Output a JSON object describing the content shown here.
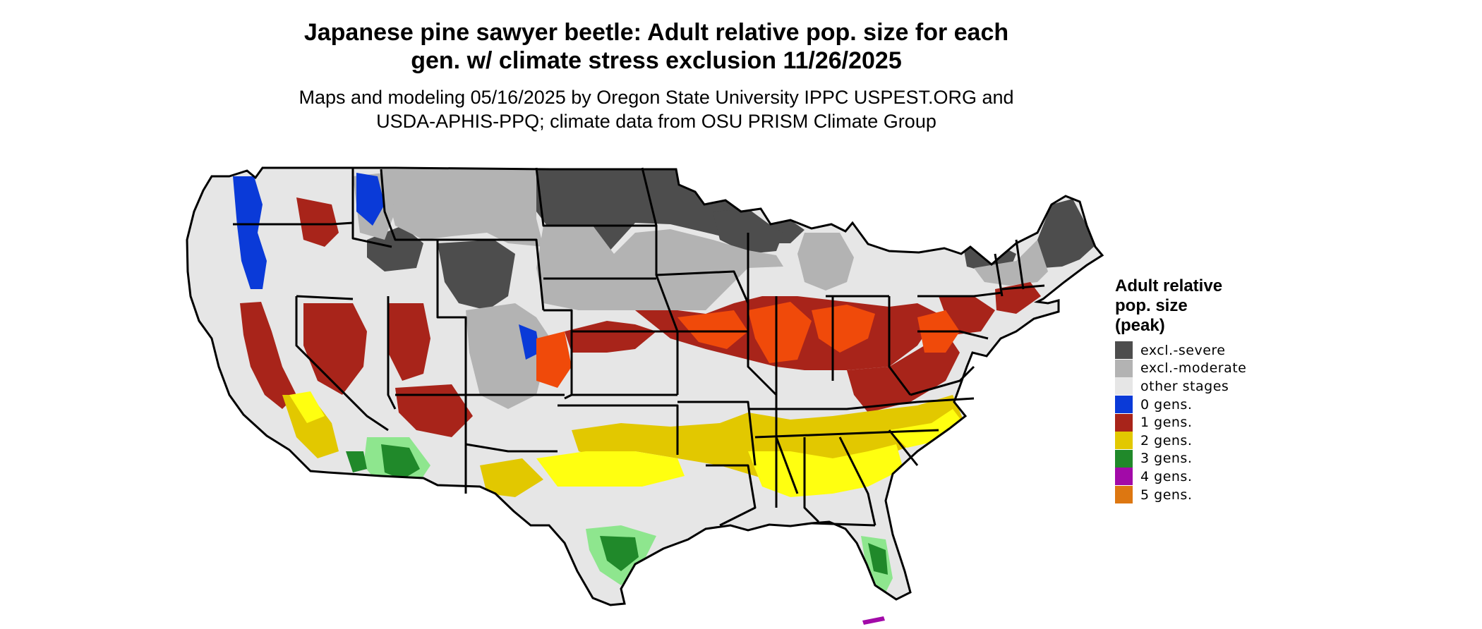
{
  "title": {
    "line1": "Japanese pine sawyer beetle: Adult relative pop. size for each",
    "line2": "gen. w/ climate stress exclusion 11/26/2025"
  },
  "subtitle": {
    "line1": "Maps and modeling 05/16/2025 by Oregon State University IPPC USPEST.ORG and",
    "line2": "USDA-APHIS-PPQ; climate data from OSU PRISM Climate Group"
  },
  "legend": {
    "title_lines": [
      "Adult relative",
      "pop. size",
      "(peak)"
    ],
    "items": [
      {
        "label": "excl.-severe",
        "color": "#4d4d4d"
      },
      {
        "label": "excl.-moderate",
        "color": "#b3b3b3"
      },
      {
        "label": "other stages",
        "color": "#e6e6e6"
      },
      {
        "label": "0 gens.",
        "color": "#0a3ad8"
      },
      {
        "label": "1 gens.",
        "color": "#a8241a"
      },
      {
        "label": "2 gens.",
        "color": "#e2c800"
      },
      {
        "label": "3 gens.",
        "color": "#20892a"
      },
      {
        "label": "4 gens.",
        "color": "#a20aa8"
      },
      {
        "label": "5 gens.",
        "color": "#dd7711"
      }
    ]
  },
  "map": {
    "colors": {
      "excl_severe": "#4d4d4d",
      "excl_moderate": "#b3b3b3",
      "other_stages": "#e6e6e6",
      "gen0": "#0a3ad8",
      "gen1": "#a8241a",
      "gen1_bright": "#f04a0a",
      "gen2": "#e2c800",
      "gen2_bright": "#ffff10",
      "gen3": "#20892a",
      "gen3_light": "#8ee68e",
      "gen4": "#a20aa8",
      "border": "#000000"
    }
  }
}
